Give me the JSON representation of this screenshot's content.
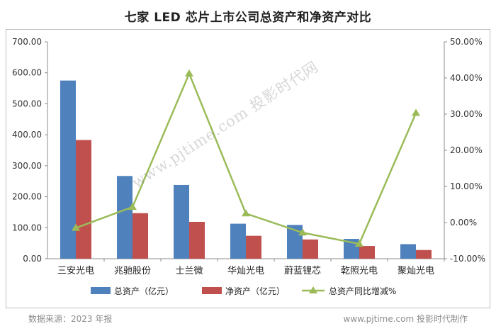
{
  "chart_data": {
    "type": "bar",
    "title": "七家 LED 芯片上市公司总资产和净资产对比",
    "categories": [
      "三安光电",
      "兆驰股份",
      "士兰微",
      "华灿光电",
      "蔚蓝锂芯",
      "乾照光电",
      "聚灿光电"
    ],
    "series": [
      {
        "name": "总资产（亿元）",
        "type": "bar",
        "axis": "left",
        "color": "#4f81bd",
        "values": [
          575,
          267,
          238,
          113,
          109,
          64,
          47
        ]
      },
      {
        "name": "净资产（亿元）",
        "type": "bar",
        "axis": "left",
        "color": "#c0504d",
        "values": [
          383,
          147,
          119,
          74,
          62,
          41,
          28
        ]
      },
      {
        "name": "总资产同比增减%",
        "type": "line",
        "axis": "right",
        "color": "#9bbb59",
        "values": [
          -1.5,
          4.3,
          41.2,
          2.5,
          -2.8,
          -5.9,
          30.3
        ]
      }
    ],
    "ylim_left": [
      0,
      700
    ],
    "ylim_right": [
      -10,
      50
    ],
    "yticks_left": [
      "700.00",
      "600.00",
      "500.00",
      "400.00",
      "300.00",
      "200.00",
      "100.00",
      "0.00"
    ],
    "yticks_right": [
      "50.00%",
      "40.00%",
      "30.00%",
      "20.00%",
      "10.00%",
      "0.00%",
      "-10.00%"
    ],
    "grid": false,
    "legend": "bottom"
  },
  "footer": {
    "source": "数据来源：2023 年报",
    "credit": "www.pjtime.com 投影时代制作",
    "watermark": "www.pjtime.com 投影时代网"
  }
}
